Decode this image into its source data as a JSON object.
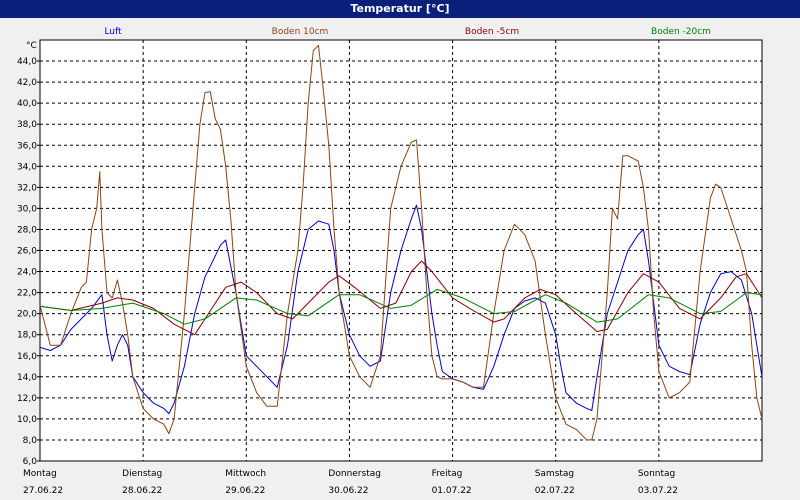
{
  "window": {
    "title": "Temperatur [°C]"
  },
  "chart_data": {
    "type": "line",
    "title": "Temperatur [°C]",
    "ylabel": "°C",
    "xlabel": "",
    "ylim": [
      6,
      46
    ],
    "y_ticks": [
      "6,0",
      "8,0",
      "10,0",
      "12,0",
      "14,0",
      "16,0",
      "18,0",
      "20,0",
      "22,0",
      "24,0",
      "26,0",
      "28,0",
      "30,0",
      "32,0",
      "34,0",
      "36,0",
      "38,0",
      "40,0",
      "42,0",
      "44,0"
    ],
    "x_days": [
      {
        "weekday": "Montag",
        "date": "27.06.22"
      },
      {
        "weekday": "Dienstag",
        "date": "28.06.22"
      },
      {
        "weekday": "Mittwoch",
        "date": "29.06.22"
      },
      {
        "weekday": "Donnerstag",
        "date": "30.06.22"
      },
      {
        "weekday": "Freitag",
        "date": "01.07.22"
      },
      {
        "weekday": "Samstag",
        "date": "02.07.22"
      },
      {
        "weekday": "Sonntag",
        "date": "03.07.22"
      }
    ],
    "x_unit": "days since 27.06.22 00:00",
    "grid": true,
    "legend_position": "top",
    "series": [
      {
        "name": "Luft",
        "color": "#0000cc",
        "points": [
          [
            0,
            16.8
          ],
          [
            0.1,
            16.5
          ],
          [
            0.2,
            17
          ],
          [
            0.3,
            18.5
          ],
          [
            0.4,
            19.5
          ],
          [
            0.5,
            20.5
          ],
          [
            0.6,
            21.8
          ],
          [
            0.65,
            18
          ],
          [
            0.7,
            15.5
          ],
          [
            0.75,
            17
          ],
          [
            0.8,
            18
          ],
          [
            0.85,
            17
          ],
          [
            0.9,
            14
          ],
          [
            1,
            12.5
          ],
          [
            1.1,
            11.5
          ],
          [
            1.2,
            11
          ],
          [
            1.25,
            10.5
          ],
          [
            1.3,
            11.5
          ],
          [
            1.4,
            15
          ],
          [
            1.5,
            20
          ],
          [
            1.6,
            23.5
          ],
          [
            1.7,
            25.5
          ],
          [
            1.75,
            26.5
          ],
          [
            1.8,
            27
          ],
          [
            1.85,
            24.5
          ],
          [
            1.9,
            22
          ],
          [
            1.95,
            19
          ],
          [
            2,
            16
          ],
          [
            2.1,
            15
          ],
          [
            2.2,
            14
          ],
          [
            2.3,
            13
          ],
          [
            2.4,
            17
          ],
          [
            2.5,
            24
          ],
          [
            2.6,
            28
          ],
          [
            2.7,
            28.8
          ],
          [
            2.8,
            28.5
          ],
          [
            2.85,
            26
          ],
          [
            2.9,
            22
          ],
          [
            3,
            18
          ],
          [
            3.1,
            16
          ],
          [
            3.2,
            15
          ],
          [
            3.3,
            15.5
          ],
          [
            3.4,
            22
          ],
          [
            3.5,
            26
          ],
          [
            3.6,
            29
          ],
          [
            3.65,
            30.3
          ],
          [
            3.7,
            28
          ],
          [
            3.75,
            24
          ],
          [
            3.8,
            20
          ],
          [
            3.85,
            17
          ],
          [
            3.9,
            14.5
          ],
          [
            4,
            13.8
          ],
          [
            4.1,
            13.5
          ],
          [
            4.2,
            13
          ],
          [
            4.3,
            12.8
          ],
          [
            4.4,
            15
          ],
          [
            4.5,
            18
          ],
          [
            4.6,
            20.5
          ],
          [
            4.7,
            21.2
          ],
          [
            4.8,
            21.5
          ],
          [
            4.9,
            21
          ],
          [
            5,
            18
          ],
          [
            5.05,
            15
          ],
          [
            5.1,
            12.5
          ],
          [
            5.2,
            11.5
          ],
          [
            5.3,
            11
          ],
          [
            5.35,
            10.8
          ],
          [
            5.4,
            14
          ],
          [
            5.5,
            20
          ],
          [
            5.6,
            23
          ],
          [
            5.7,
            26
          ],
          [
            5.8,
            27.5
          ],
          [
            5.85,
            28
          ],
          [
            5.9,
            25
          ],
          [
            5.95,
            21
          ],
          [
            6,
            17
          ],
          [
            6.1,
            15
          ],
          [
            6.2,
            14.5
          ],
          [
            6.3,
            14.2
          ],
          [
            6.4,
            19
          ],
          [
            6.5,
            22
          ],
          [
            6.6,
            23.8
          ],
          [
            6.7,
            24
          ],
          [
            6.8,
            23.2
          ],
          [
            6.9,
            20
          ],
          [
            6.95,
            17
          ],
          [
            7,
            14
          ]
        ]
      },
      {
        "name": "Boden 10cm",
        "color": "#8b4513",
        "points": [
          [
            0,
            20.8
          ],
          [
            0.1,
            17
          ],
          [
            0.2,
            17
          ],
          [
            0.3,
            20
          ],
          [
            0.4,
            22.5
          ],
          [
            0.45,
            23
          ],
          [
            0.5,
            28
          ],
          [
            0.55,
            30
          ],
          [
            0.58,
            33.5
          ],
          [
            0.6,
            28
          ],
          [
            0.65,
            22
          ],
          [
            0.7,
            21.5
          ],
          [
            0.75,
            23.2
          ],
          [
            0.8,
            21
          ],
          [
            0.85,
            18
          ],
          [
            0.9,
            14
          ],
          [
            1,
            11
          ],
          [
            1.1,
            10
          ],
          [
            1.2,
            9.5
          ],
          [
            1.25,
            8.6
          ],
          [
            1.3,
            10
          ],
          [
            1.4,
            20
          ],
          [
            1.5,
            32
          ],
          [
            1.55,
            38
          ],
          [
            1.6,
            41
          ],
          [
            1.65,
            41.1
          ],
          [
            1.7,
            38.5
          ],
          [
            1.75,
            37.5
          ],
          [
            1.8,
            34
          ],
          [
            1.85,
            29
          ],
          [
            1.9,
            22
          ],
          [
            2,
            15
          ],
          [
            2.1,
            12.5
          ],
          [
            2.2,
            11.2
          ],
          [
            2.3,
            11.2
          ],
          [
            2.4,
            20
          ],
          [
            2.5,
            26
          ],
          [
            2.55,
            32
          ],
          [
            2.6,
            40
          ],
          [
            2.65,
            45
          ],
          [
            2.7,
            45.5
          ],
          [
            2.75,
            41
          ],
          [
            2.8,
            36
          ],
          [
            2.85,
            28
          ],
          [
            2.9,
            22
          ],
          [
            3,
            16
          ],
          [
            3.1,
            14
          ],
          [
            3.2,
            13
          ],
          [
            3.3,
            16
          ],
          [
            3.4,
            30
          ],
          [
            3.5,
            34
          ],
          [
            3.6,
            36.3
          ],
          [
            3.65,
            36.5
          ],
          [
            3.7,
            30
          ],
          [
            3.75,
            22
          ],
          [
            3.8,
            16
          ],
          [
            3.85,
            14
          ],
          [
            3.9,
            13.8
          ],
          [
            4,
            13.8
          ],
          [
            4.1,
            13.5
          ],
          [
            4.2,
            13
          ],
          [
            4.3,
            13
          ],
          [
            4.4,
            20
          ],
          [
            4.5,
            26
          ],
          [
            4.6,
            28.5
          ],
          [
            4.7,
            27.5
          ],
          [
            4.8,
            25
          ],
          [
            4.9,
            18
          ],
          [
            5,
            12
          ],
          [
            5.1,
            9.5
          ],
          [
            5.2,
            9
          ],
          [
            5.3,
            8
          ],
          [
            5.35,
            8
          ],
          [
            5.4,
            10
          ],
          [
            5.5,
            22
          ],
          [
            5.55,
            30
          ],
          [
            5.6,
            29
          ],
          [
            5.65,
            35
          ],
          [
            5.7,
            35
          ],
          [
            5.8,
            34.5
          ],
          [
            5.85,
            32
          ],
          [
            5.9,
            28
          ],
          [
            5.95,
            20
          ],
          [
            6,
            14.5
          ],
          [
            6.1,
            12
          ],
          [
            6.2,
            12.5
          ],
          [
            6.3,
            13.5
          ],
          [
            6.4,
            24
          ],
          [
            6.5,
            31
          ],
          [
            6.55,
            32.3
          ],
          [
            6.6,
            32
          ],
          [
            6.7,
            29
          ],
          [
            6.8,
            26
          ],
          [
            6.85,
            24
          ],
          [
            6.9,
            17
          ],
          [
            6.95,
            12
          ],
          [
            7,
            10
          ]
        ]
      },
      {
        "name": "Boden -5cm",
        "color": "#8b0000",
        "points": [
          [
            0,
            20.7
          ],
          [
            0.3,
            20.3
          ],
          [
            0.6,
            21
          ],
          [
            0.75,
            21.5
          ],
          [
            0.9,
            21.3
          ],
          [
            1.1,
            20.5
          ],
          [
            1.3,
            19
          ],
          [
            1.5,
            18
          ],
          [
            1.6,
            19.5
          ],
          [
            1.8,
            22.5
          ],
          [
            1.95,
            23
          ],
          [
            2.1,
            22
          ],
          [
            2.3,
            20
          ],
          [
            2.45,
            19.5
          ],
          [
            2.6,
            21
          ],
          [
            2.8,
            23
          ],
          [
            2.9,
            23.6
          ],
          [
            3.05,
            22.5
          ],
          [
            3.3,
            20.5
          ],
          [
            3.45,
            21
          ],
          [
            3.6,
            24
          ],
          [
            3.7,
            25
          ],
          [
            3.8,
            24
          ],
          [
            4,
            21.5
          ],
          [
            4.2,
            20.3
          ],
          [
            4.4,
            19.2
          ],
          [
            4.5,
            19.5
          ],
          [
            4.7,
            21.5
          ],
          [
            4.85,
            22.3
          ],
          [
            5,
            21.8
          ],
          [
            5.2,
            20
          ],
          [
            5.4,
            18.3
          ],
          [
            5.5,
            18.5
          ],
          [
            5.7,
            22
          ],
          [
            5.85,
            23.8
          ],
          [
            6,
            23
          ],
          [
            6.2,
            20.5
          ],
          [
            6.4,
            19.5
          ],
          [
            6.6,
            21.5
          ],
          [
            6.75,
            23.5
          ],
          [
            6.85,
            23.8
          ],
          [
            7,
            21.5
          ]
        ]
      },
      {
        "name": "Boden -20cm",
        "color": "#008000",
        "points": [
          [
            0,
            20.7
          ],
          [
            0.3,
            20.3
          ],
          [
            0.6,
            20.5
          ],
          [
            0.9,
            21
          ],
          [
            1.2,
            20
          ],
          [
            1.4,
            19
          ],
          [
            1.6,
            19.5
          ],
          [
            1.9,
            21.5
          ],
          [
            2.1,
            21.3
          ],
          [
            2.4,
            20
          ],
          [
            2.6,
            19.8
          ],
          [
            2.9,
            21.8
          ],
          [
            3.1,
            21.8
          ],
          [
            3.4,
            20.5
          ],
          [
            3.6,
            20.8
          ],
          [
            3.85,
            22.3
          ],
          [
            4.1,
            21.5
          ],
          [
            4.4,
            20
          ],
          [
            4.6,
            20.2
          ],
          [
            4.9,
            21.8
          ],
          [
            5.1,
            21
          ],
          [
            5.4,
            19.2
          ],
          [
            5.6,
            19.5
          ],
          [
            5.9,
            21.8
          ],
          [
            6.1,
            21.5
          ],
          [
            6.4,
            20
          ],
          [
            6.6,
            20.2
          ],
          [
            6.85,
            22
          ],
          [
            7,
            21.8
          ]
        ]
      }
    ]
  }
}
